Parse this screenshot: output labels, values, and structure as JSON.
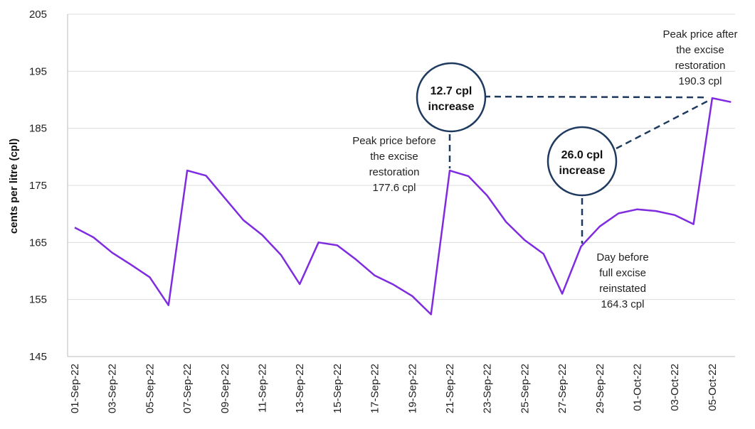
{
  "chart_data": {
    "type": "line",
    "title": "",
    "xlabel": "",
    "ylabel": "cents per litre (cpl)",
    "ylim": [
      145,
      205
    ],
    "yticks": [
      145,
      155,
      165,
      175,
      185,
      195,
      205
    ],
    "grid": "horizontal",
    "line_color": "#7f2be0",
    "callout_color": "#1f3a5f",
    "x": [
      "01-Sep-22",
      "02-Sep-22",
      "03-Sep-22",
      "04-Sep-22",
      "05-Sep-22",
      "06-Sep-22",
      "07-Sep-22",
      "08-Sep-22",
      "09-Sep-22",
      "10-Sep-22",
      "11-Sep-22",
      "12-Sep-22",
      "13-Sep-22",
      "14-Sep-22",
      "15-Sep-22",
      "16-Sep-22",
      "17-Sep-22",
      "18-Sep-22",
      "19-Sep-22",
      "20-Sep-22",
      "21-Sep-22",
      "22-Sep-22",
      "23-Sep-22",
      "24-Sep-22",
      "25-Sep-22",
      "26-Sep-22",
      "27-Sep-22",
      "28-Sep-22",
      "29-Sep-22",
      "30-Sep-22",
      "01-Oct-22",
      "02-Oct-22",
      "03-Oct-22",
      "04-Oct-22",
      "05-Oct-22",
      "06-Oct-22"
    ],
    "xtick_labels": [
      "01-Sep-22",
      "03-Sep-22",
      "05-Sep-22",
      "07-Sep-22",
      "09-Sep-22",
      "11-Sep-22",
      "13-Sep-22",
      "15-Sep-22",
      "17-Sep-22",
      "19-Sep-22",
      "21-Sep-22",
      "23-Sep-22",
      "25-Sep-22",
      "27-Sep-22",
      "29-Sep-22",
      "01-Oct-22",
      "03-Oct-22",
      "05-Oct-22"
    ],
    "series": [
      {
        "values": [
          167.6,
          165.9,
          163.2,
          161.1,
          158.9,
          154.0,
          177.6,
          176.7,
          172.8,
          168.9,
          166.3,
          162.8,
          157.7,
          165.0,
          164.5,
          162.0,
          159.2,
          157.6,
          155.6,
          152.4,
          177.6,
          176.6,
          173.2,
          168.6,
          165.4,
          163.0,
          156.0,
          164.3,
          167.8,
          170.1,
          170.8,
          170.5,
          169.8,
          168.2,
          190.3,
          189.6
        ]
      }
    ],
    "annotations": {
      "peak_before": [
        "Peak price before",
        "the excise",
        "restoration",
        "177.6 cpl"
      ],
      "peak_after": [
        "Peak price after",
        "the excise",
        "restoration",
        "190.3 cpl"
      ],
      "day_before": [
        "Day before",
        "full excise",
        "reinstated",
        "164.3 cpl"
      ],
      "callout_1": [
        "12.7 cpl",
        "increase"
      ],
      "callout_2": [
        "26.0 cpl",
        "increase"
      ]
    }
  }
}
